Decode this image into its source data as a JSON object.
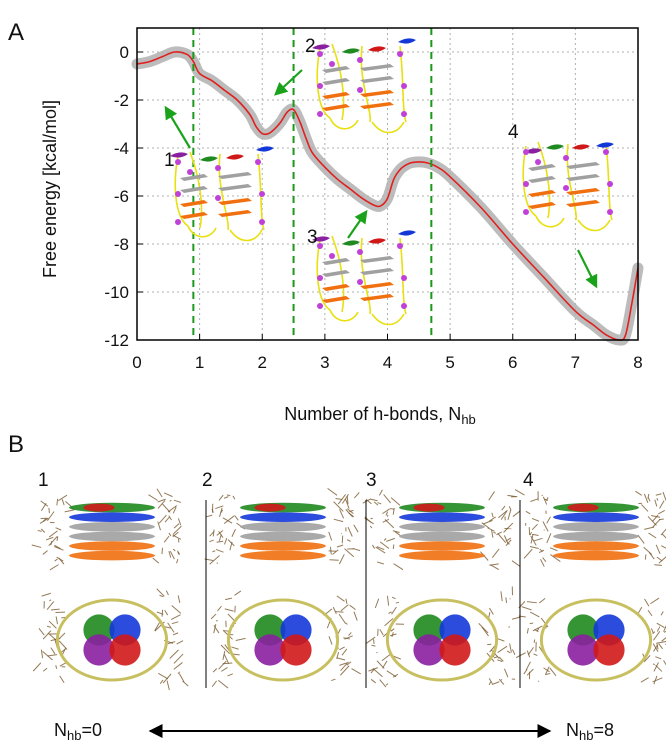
{
  "panel_labels": [
    "A",
    "B"
  ],
  "chart_data": {
    "type": "line",
    "title": "",
    "xlabel": "Number of h-bonds, N",
    "xlabel_sub": "hb",
    "ylabel": "Free energy [kcal/mol]",
    "xlim": [
      0,
      8
    ],
    "ylim": [
      -12,
      1
    ],
    "x_ticks": [
      "0",
      "1",
      "2",
      "3",
      "4",
      "5",
      "6",
      "7",
      "8"
    ],
    "y_ticks": [
      "0",
      "-2",
      "-4",
      "-6",
      "-8",
      "-10",
      "-12"
    ],
    "grid": true,
    "series": [
      {
        "color": "#e02020",
        "x": [
          0,
          0.2,
          0.4,
          0.6,
          0.8,
          0.9,
          1.0,
          1.2,
          1.4,
          1.6,
          1.8,
          1.9,
          2.0,
          2.1,
          2.2,
          2.3,
          2.4,
          2.5,
          2.6,
          2.7,
          2.8,
          3.0,
          3.2,
          3.4,
          3.6,
          3.8,
          3.9,
          4.0,
          4.1,
          4.2,
          4.3,
          4.4,
          4.6,
          4.8,
          5.0,
          5.5,
          6.0,
          6.5,
          7.0,
          7.3,
          7.5,
          7.7,
          7.8,
          7.9,
          8.0
        ],
        "y": [
          -0.5,
          -0.4,
          -0.2,
          0.0,
          -0.1,
          -0.4,
          -0.9,
          -1.2,
          -1.6,
          -2.0,
          -2.6,
          -3.1,
          -3.4,
          -3.4,
          -3.2,
          -2.9,
          -2.5,
          -2.4,
          -2.9,
          -3.6,
          -4.2,
          -4.8,
          -5.3,
          -5.7,
          -6.1,
          -6.4,
          -6.4,
          -6.1,
          -5.3,
          -4.9,
          -4.7,
          -4.6,
          -4.6,
          -4.8,
          -5.2,
          -6.5,
          -8.0,
          -9.4,
          -10.8,
          -11.4,
          -11.8,
          -12.0,
          -11.8,
          -10.5,
          -9.0
        ]
      }
    ],
    "error_band_color": "#b0b0b0",
    "vlines": {
      "x": [
        0.9,
        2.5,
        4.7
      ],
      "color": "#1a9a1a",
      "style": "dashed"
    },
    "annotations": [
      "1",
      "2",
      "3",
      "4"
    ]
  },
  "panel_b": {
    "state_labels": [
      "1",
      "2",
      "3",
      "4"
    ],
    "left_end_label": "N",
    "left_end_sub": "hb",
    "left_end_value": "=0",
    "right_end_label": "N",
    "right_end_sub": "hb",
    "right_end_value": "=8"
  },
  "colors": {
    "axis": "#000000",
    "grid": "#b0b0b0",
    "arrow": "#1aa31a",
    "strand_purple": "#8a1fa0",
    "strand_green": "#1f8a1f",
    "strand_red": "#d01818",
    "strand_blue": "#1438d8",
    "quartet_gray": "#a0a0a0",
    "quartet_orange": "#f07010",
    "backbone": "#e8e010",
    "node": "#c040d8",
    "bundle_brown": "#7a5a2e",
    "bundle_yellow": "#c8c060"
  }
}
